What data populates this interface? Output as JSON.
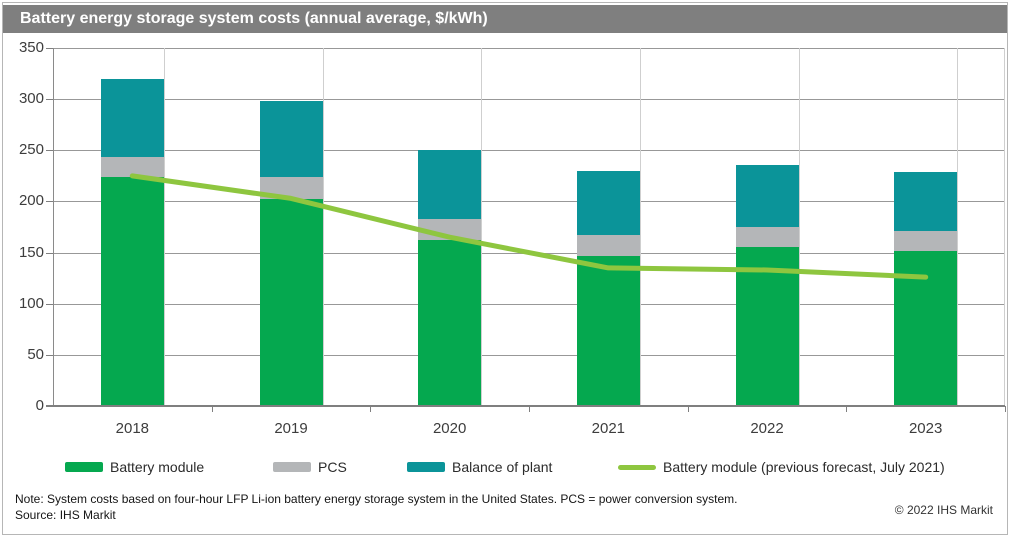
{
  "title_bar": {
    "title": "Battery energy storage system costs (annual average, $/kWh)"
  },
  "chart_data": {
    "type": "bar",
    "stacked": true,
    "title": "Battery energy storage system costs (annual average, $/kWh)",
    "xlabel": "",
    "ylabel": "$/kWh",
    "categories": [
      "2018",
      "2019",
      "2020",
      "2021",
      "2022",
      "2023"
    ],
    "series": [
      {
        "name": "Battery module",
        "type": "bar",
        "color": "#05a84f",
        "values": [
          224,
          202,
          162,
          147,
          155,
          152
        ]
      },
      {
        "name": "PCS",
        "type": "bar",
        "color": "#b4b6b8",
        "values": [
          19,
          22,
          21,
          20,
          20,
          19
        ]
      },
      {
        "name": "Balance of plant",
        "type": "bar",
        "color": "#0b9499",
        "values": [
          77,
          74,
          67,
          63,
          61,
          58
        ]
      },
      {
        "name": "Battery module (previous forecast, July 2021)",
        "type": "line",
        "color": "#8ec63f",
        "values": [
          225,
          203,
          165,
          135,
          133,
          126
        ]
      }
    ],
    "stack_totals": [
      320,
      298,
      250,
      230,
      236,
      229
    ],
    "ylim": [
      0,
      350
    ],
    "yticks": [
      0,
      50,
      100,
      150,
      200,
      250,
      300,
      350
    ],
    "grid": "horizontal",
    "legend_position": "bottom"
  },
  "footer": {
    "note": "Note: System costs based on four-hour LFP Li-ion battery energy storage system in the United States. PCS = power conversion system.",
    "source": "Source: IHS Markit",
    "copyright": "© 2022 IHS Markit"
  },
  "colors": {
    "title_bar_bg": "#7f7f7f",
    "battery_module": "#05a84f",
    "pcs": "#b4b6b8",
    "balance_of_plant": "#0b9499",
    "forecast_line": "#8ec63f",
    "gridline": "#989898",
    "axis": "#7f7f7f"
  }
}
